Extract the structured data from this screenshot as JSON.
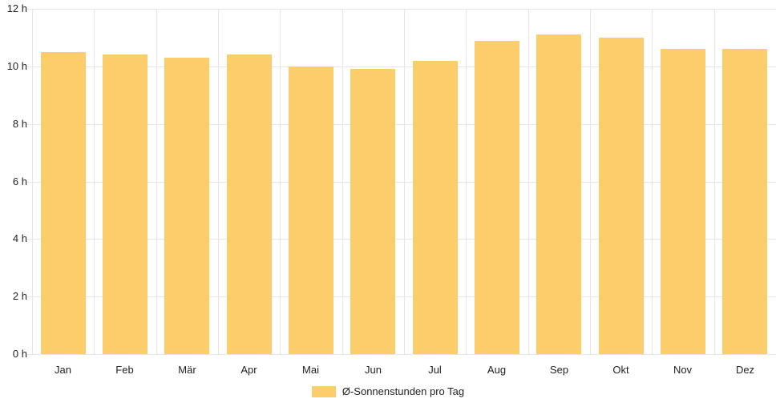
{
  "chart_data": {
    "type": "bar",
    "title": "",
    "categories": [
      "Jan",
      "Feb",
      "Mär",
      "Apr",
      "Mai",
      "Jun",
      "Jul",
      "Aug",
      "Sep",
      "Okt",
      "Nov",
      "Dez"
    ],
    "series": [
      {
        "name": "Ø-Sonnenstunden pro Tag",
        "values": [
          10.5,
          10.4,
          10.3,
          10.4,
          10.0,
          9.9,
          10.2,
          10.9,
          11.1,
          11.0,
          10.6,
          10.6
        ]
      }
    ],
    "xlabel": "",
    "ylabel": "",
    "ylim": [
      0,
      12
    ],
    "y_ticks": [
      0,
      2,
      4,
      6,
      8,
      10,
      12
    ],
    "y_tick_labels": [
      "0 h",
      "2 h",
      "4 h",
      "6 h",
      "8 h",
      "10 h",
      "12 h"
    ],
    "grid": true,
    "legend_position": "bottom",
    "legend": {
      "label": "Ø-Sonnenstunden pro Tag"
    },
    "colors": {
      "bar": "#fcce6b",
      "gridline": "#e6e6e6",
      "text": "#222222",
      "background": "#ffffff"
    }
  }
}
